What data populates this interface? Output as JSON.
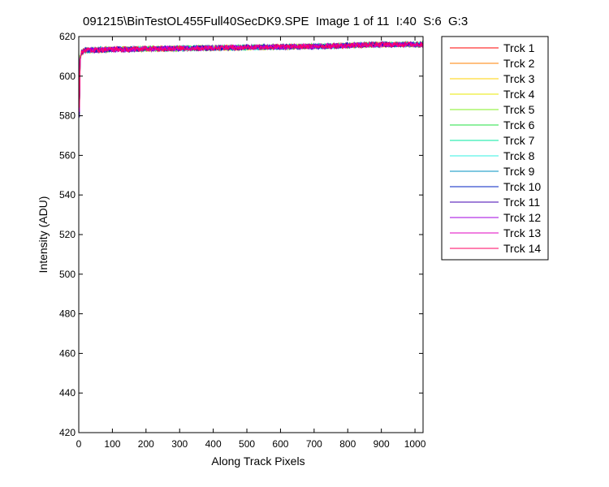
{
  "window": {
    "title": "091215\\BinTestOL455Full40SecDK9.SPE  Image 1 of 11  I:40  S:6  G:3"
  },
  "chart_data": {
    "type": "line",
    "title": "091215\\BinTestOL455Full40SecDK9.SPE  Image 1 of 11  I:40  S:6  G:3",
    "xlabel": "Along Track Pixels",
    "ylabel": "Intensity (ADU)",
    "xlim": [
      0,
      1024
    ],
    "ylim": [
      420,
      620
    ],
    "xticks": [
      0,
      100,
      200,
      300,
      400,
      500,
      600,
      700,
      800,
      900,
      1000
    ],
    "yticks": [
      420,
      440,
      460,
      480,
      500,
      520,
      540,
      560,
      580,
      600,
      620
    ],
    "grid": false,
    "legend_position": "outside-top-right",
    "description_points": {
      "x": [
        0,
        2,
        4,
        8,
        20,
        100,
        300,
        500,
        700,
        900,
        1024
      ],
      "y_typical": [
        612,
        582,
        608,
        612,
        613,
        613.5,
        614,
        614.5,
        615,
        616,
        616
      ]
    },
    "series": [
      {
        "name": "Trck 1",
        "color": "#ff0000"
      },
      {
        "name": "Trck 2",
        "color": "#ff8000"
      },
      {
        "name": "Trck 3",
        "color": "#ffd000"
      },
      {
        "name": "Trck 4",
        "color": "#e8e800"
      },
      {
        "name": "Trck 5",
        "color": "#80f020"
      },
      {
        "name": "Trck 6",
        "color": "#20e040"
      },
      {
        "name": "Trck 7",
        "color": "#00e8a0"
      },
      {
        "name": "Trck 8",
        "color": "#30f0e0"
      },
      {
        "name": "Trck 9",
        "color": "#0090c0"
      },
      {
        "name": "Trck 10",
        "color": "#0020c0"
      },
      {
        "name": "Trck 11",
        "color": "#4000b0"
      },
      {
        "name": "Trck 12",
        "color": "#a000e0"
      },
      {
        "name": "Trck 13",
        "color": "#e000c0"
      },
      {
        "name": "Trck 14",
        "color": "#ff0060"
      }
    ]
  }
}
